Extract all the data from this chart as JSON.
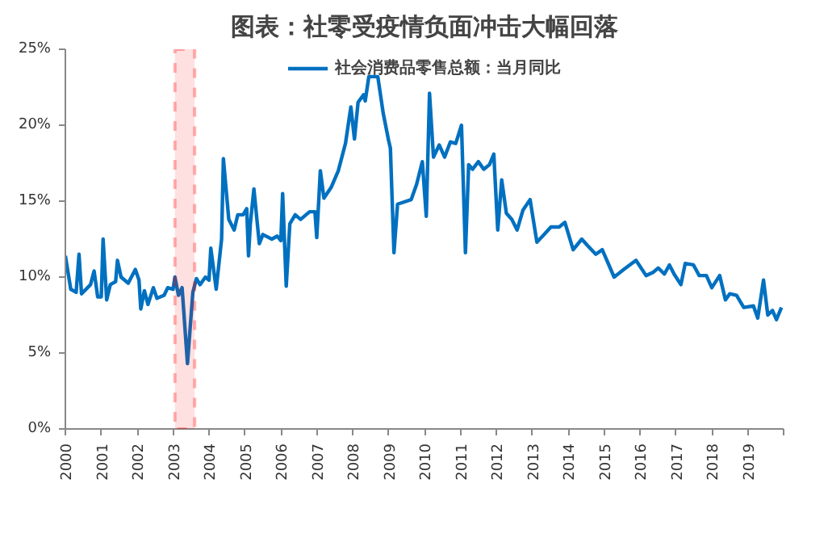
{
  "chart_data": {
    "type": "line",
    "title": "图表：社零受疫情负面冲击大幅回落",
    "x": [
      2000.0,
      2000.15,
      2000.3,
      2000.38,
      2000.45,
      2000.7,
      2000.8,
      2000.9,
      2001.0,
      2001.05,
      2001.15,
      2001.25,
      2001.4,
      2001.45,
      2001.55,
      2001.75,
      2001.95,
      2002.05,
      2002.1,
      2002.2,
      2002.3,
      2002.45,
      2002.55,
      2002.75,
      2002.85,
      2003.0,
      2003.05,
      2003.15,
      2003.25,
      2003.4,
      2003.55,
      2003.65,
      2003.75,
      2003.9,
      2004.0,
      2004.05,
      2004.2,
      2004.35,
      2004.4,
      2004.55,
      2004.7,
      2004.8,
      2004.95,
      2005.05,
      2005.1,
      2005.15,
      2005.25,
      2005.4,
      2005.5,
      2005.75,
      2005.9,
      2006.0,
      2006.05,
      2006.15,
      2006.25,
      2006.4,
      2006.55,
      2006.8,
      2006.95,
      2007.0,
      2007.1,
      2007.2,
      2007.4,
      2007.6,
      2007.8,
      2007.95,
      2008.05,
      2008.15,
      2008.3,
      2008.35,
      2008.45,
      2008.7,
      2008.85,
      2009.0,
      2009.05,
      2009.15,
      2009.25,
      2009.63,
      2009.78,
      2009.94,
      2010.05,
      2010.14,
      2010.25,
      2010.41,
      2010.56,
      2010.72,
      2010.87,
      2011.03,
      2011.14,
      2011.23,
      2011.34,
      2011.5,
      2011.65,
      2011.81,
      2011.93,
      2012.04,
      2012.15,
      2012.28,
      2012.43,
      2012.58,
      2012.74,
      2012.94,
      2013.13,
      2013.29,
      2013.52,
      2013.75,
      2013.91,
      2014.14,
      2014.38,
      2014.53,
      2014.77,
      2014.95,
      2015.28,
      2015.55,
      2015.89,
      2016.17,
      2016.36,
      2016.51,
      2016.68,
      2016.82,
      2016.95,
      2017.14,
      2017.26,
      2017.49,
      2017.65,
      2017.85,
      2018.0,
      2018.22,
      2018.38,
      2018.5,
      2018.69,
      2018.89,
      2019.16,
      2019.28,
      2019.44,
      2019.56,
      2019.69,
      2019.8,
      2019.94
    ],
    "series": [
      {
        "name": "社会消费品零售总额：当月同比",
        "color": "#0070c0",
        "values": [
          11.4,
          9.2,
          9.0,
          11.5,
          8.9,
          9.5,
          10.4,
          8.7,
          8.7,
          12.5,
          8.5,
          9.5,
          9.7,
          11.1,
          10.0,
          9.6,
          10.5,
          9.8,
          7.9,
          9.1,
          8.2,
          9.3,
          8.6,
          8.8,
          9.3,
          9.2,
          10.0,
          8.8,
          9.3,
          4.3,
          9.0,
          9.9,
          9.5,
          10.0,
          9.8,
          11.9,
          9.2,
          12.5,
          17.8,
          13.8,
          13.1,
          14.1,
          14.1,
          14.5,
          11.4,
          13.5,
          15.8,
          12.2,
          12.8,
          12.5,
          12.7,
          12.4,
          15.5,
          9.4,
          13.5,
          14.1,
          13.8,
          14.3,
          14.3,
          12.6,
          17.0,
          15.2,
          15.9,
          17.0,
          18.8,
          21.2,
          19.1,
          21.5,
          22.0,
          21.6,
          23.2,
          23.2,
          20.8,
          19.0,
          18.5,
          11.6,
          14.8,
          15.1,
          16.1,
          17.6,
          14.0,
          22.1,
          17.9,
          18.7,
          17.9,
          18.9,
          18.8,
          20.0,
          11.6,
          17.4,
          17.1,
          17.6,
          17.1,
          17.4,
          18.1,
          13.1,
          16.4,
          14.2,
          13.8,
          13.1,
          14.4,
          15.1,
          12.3,
          12.7,
          13.3,
          13.3,
          13.6,
          11.8,
          12.5,
          12.1,
          11.5,
          11.8,
          10.0,
          10.5,
          11.1,
          10.1,
          10.3,
          10.6,
          10.2,
          10.8,
          10.2,
          9.5,
          10.9,
          10.8,
          10.1,
          10.1,
          9.3,
          10.1,
          8.5,
          8.9,
          8.8,
          8.0,
          8.1,
          7.3,
          9.8,
          7.5,
          7.8,
          7.2,
          8.0
        ]
      }
    ],
    "xlim": [
      2000,
      2020
    ],
    "xticks": [
      {
        "value": 2000,
        "label": "2000"
      },
      {
        "value": 2001,
        "label": "2001"
      },
      {
        "value": 2002,
        "label": "2002"
      },
      {
        "value": 2003,
        "label": "2003"
      },
      {
        "value": 2004,
        "label": "2004"
      },
      {
        "value": 2005,
        "label": "2005"
      },
      {
        "value": 2006,
        "label": "2006"
      },
      {
        "value": 2007,
        "label": "2007"
      },
      {
        "value": 2008,
        "label": "2008"
      },
      {
        "value": 2009,
        "label": "2009"
      },
      {
        "value": 2010,
        "label": "2010"
      },
      {
        "value": 2011,
        "label": "2011"
      },
      {
        "value": 2012,
        "label": "2012"
      },
      {
        "value": 2013,
        "label": "2013"
      },
      {
        "value": 2014,
        "label": "2014"
      },
      {
        "value": 2015,
        "label": "2015"
      },
      {
        "value": 2016,
        "label": "2016"
      },
      {
        "value": 2017,
        "label": "2017"
      },
      {
        "value": 2018,
        "label": "2018"
      },
      {
        "value": 2019,
        "label": "2019"
      },
      {
        "value": 2020,
        "label": null
      }
    ],
    "ylim": [
      0,
      25
    ],
    "yticks": [
      {
        "value": 0,
        "label": "0%"
      },
      {
        "value": 5,
        "label": "5%"
      },
      {
        "value": 10,
        "label": "10%"
      },
      {
        "value": 15,
        "label": "15%"
      },
      {
        "value": 20,
        "label": "20%"
      },
      {
        "value": 25,
        "label": "25%"
      }
    ],
    "bands": [
      {
        "axis": "x",
        "from": 2003.05,
        "to": 2003.6,
        "color": "#ff0000"
      }
    ],
    "legend": "top",
    "grid": false,
    "line_style": "solid",
    "marker": "none"
  }
}
